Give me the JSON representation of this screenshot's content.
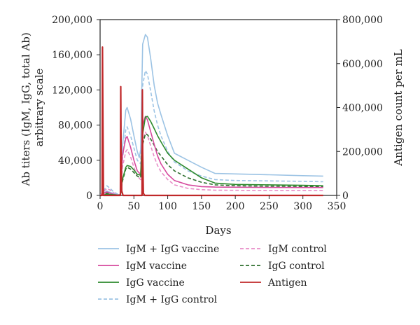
{
  "chart_data": {
    "type": "line",
    "xlabel": "Days",
    "ylabel_left": "Ab titers (IgM, IgG, total Ab) arbitrary scale",
    "ylabel_left_lines": [
      "Ab titers (IgM, IgG, total Ab)",
      "arbitrary scale"
    ],
    "ylabel_right": "Antigen count per mL",
    "xlim": [
      0,
      350
    ],
    "ylim_left": [
      0,
      200000
    ],
    "ylim_right": [
      0,
      800000
    ],
    "x_ticks": [
      0,
      50,
      100,
      150,
      200,
      250,
      300,
      350
    ],
    "x_tick_labels": [
      "0",
      "50",
      "100",
      "150",
      "200",
      "250",
      "300",
      "350"
    ],
    "y_left_ticks": [
      0,
      40000,
      80000,
      120000,
      160000,
      200000
    ],
    "y_left_tick_labels": [
      "0",
      "40,000",
      "80,000",
      "120,000",
      "160,000",
      "200,000"
    ],
    "y_right_ticks": [
      0,
      200000,
      400000,
      600000,
      800000
    ],
    "y_right_tick_labels": [
      "0",
      "200,000",
      "400,000",
      "600,000",
      "800,000"
    ],
    "grid": false,
    "legend_position": "bottom",
    "series": [
      {
        "name": "IgM + IgG vaccine",
        "color": "#9cc3e4",
        "dash": "solid",
        "axis": "left",
        "x": [
          0,
          5,
          10,
          15,
          20,
          27,
          30,
          33,
          38,
          40,
          45,
          50,
          55,
          58,
          60,
          63,
          67,
          70,
          75,
          80,
          85,
          90,
          100,
          110,
          130,
          150,
          170,
          200,
          250,
          300,
          330
        ],
        "y": [
          0,
          2500,
          5000,
          3500,
          2000,
          500,
          1500,
          55000,
          97000,
          100000,
          87000,
          68000,
          50000,
          43000,
          52000,
          172000,
          183000,
          180000,
          155000,
          125000,
          105000,
          92000,
          68000,
          48000,
          40000,
          32000,
          25000,
          24500,
          23500,
          22500,
          22000
        ]
      },
      {
        "name": "IgM vaccine",
        "color": "#d64a9e",
        "dash": "solid",
        "axis": "left",
        "x": [
          0,
          5,
          10,
          15,
          20,
          27,
          30,
          33,
          38,
          40,
          45,
          50,
          55,
          60,
          63,
          67,
          70,
          75,
          80,
          85,
          90,
          100,
          110,
          130,
          150,
          170,
          200,
          250,
          300,
          330
        ],
        "y": [
          0,
          2000,
          4000,
          2500,
          1200,
          300,
          1000,
          45000,
          65000,
          67000,
          55000,
          40000,
          28000,
          24000,
          80000,
          90000,
          86000,
          72000,
          58000,
          45000,
          36000,
          24000,
          17000,
          12000,
          10000,
          9500,
          9300,
          9100,
          9000,
          9000
        ]
      },
      {
        "name": "IgG vaccine",
        "color": "#2d8a2d",
        "dash": "solid",
        "axis": "left",
        "x": [
          0,
          5,
          10,
          15,
          20,
          27,
          30,
          33,
          38,
          40,
          45,
          50,
          55,
          60,
          63,
          67,
          70,
          75,
          80,
          85,
          90,
          100,
          110,
          130,
          150,
          170,
          200,
          250,
          300,
          330
        ],
        "y": [
          0,
          500,
          1500,
          1200,
          800,
          300,
          500,
          18000,
          32000,
          34000,
          33000,
          29000,
          24000,
          23000,
          70000,
          89000,
          90000,
          84000,
          76000,
          68000,
          61000,
          48000,
          40000,
          30000,
          20000,
          14000,
          12500,
          12000,
          11500,
          11000
        ]
      },
      {
        "name": "IgM + IgG control",
        "color": "#9cc3e4",
        "dash": "dashed",
        "axis": "left",
        "x": [
          0,
          5,
          10,
          15,
          20,
          27,
          30,
          33,
          38,
          40,
          45,
          50,
          55,
          60,
          63,
          67,
          70,
          75,
          80,
          85,
          90,
          100,
          110,
          130,
          150,
          170,
          200,
          250,
          300,
          330
        ],
        "y": [
          0,
          5000,
          11000,
          8000,
          4000,
          1000,
          2000,
          40000,
          75000,
          78000,
          68000,
          54000,
          40000,
          36000,
          125000,
          142000,
          138000,
          118000,
          96000,
          80000,
          68000,
          50000,
          38000,
          28000,
          22000,
          18000,
          17000,
          16500,
          16000,
          15500
        ]
      },
      {
        "name": "IgM control",
        "color": "#e88cc7",
        "dash": "dashed",
        "axis": "left",
        "x": [
          0,
          5,
          10,
          15,
          20,
          27,
          30,
          33,
          38,
          40,
          45,
          50,
          55,
          60,
          63,
          67,
          70,
          75,
          80,
          85,
          90,
          100,
          110,
          130,
          150,
          170,
          200,
          250,
          300,
          330
        ],
        "y": [
          0,
          4000,
          8000,
          6000,
          3000,
          800,
          1500,
          32000,
          50000,
          52000,
          44000,
          32000,
          22000,
          18000,
          60000,
          72000,
          68000,
          56000,
          44000,
          34000,
          27000,
          18000,
          12000,
          8000,
          6500,
          6000,
          5800,
          5600,
          5500,
          5500
        ]
      },
      {
        "name": "IgG control",
        "color": "#2d6e2d",
        "dash": "dashed",
        "axis": "left",
        "x": [
          0,
          5,
          10,
          15,
          20,
          27,
          30,
          33,
          38,
          40,
          45,
          50,
          55,
          60,
          63,
          67,
          70,
          75,
          80,
          85,
          90,
          100,
          110,
          130,
          150,
          170,
          200,
          250,
          300,
          330
        ],
        "y": [
          0,
          1000,
          2500,
          2000,
          1200,
          400,
          600,
          16000,
          30000,
          32000,
          30000,
          26000,
          22000,
          20000,
          58000,
          70000,
          69000,
          64000,
          57000,
          50000,
          45000,
          35000,
          28000,
          20000,
          15000,
          12000,
          11000,
          10500,
          10200,
          10000
        ]
      },
      {
        "name": "Antigen",
        "color": "#c0282a",
        "dash": "solid",
        "axis": "right",
        "x": [
          0,
          3,
          3.5,
          4,
          5,
          10,
          29,
          30,
          30.5,
          31,
          32,
          34,
          61,
          62,
          62.5,
          63,
          64,
          66,
          90,
          330
        ],
        "y": [
          0,
          0,
          675000,
          400000,
          0,
          0,
          0,
          0,
          495000,
          250000,
          20000,
          0,
          0,
          0,
          480000,
          200000,
          10000,
          0,
          0,
          0
        ]
      }
    ]
  }
}
